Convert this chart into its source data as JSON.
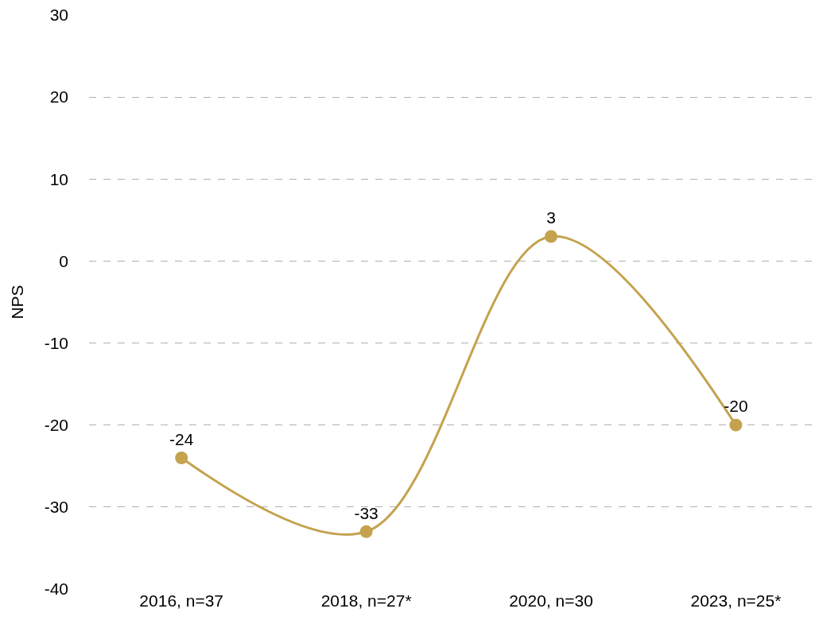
{
  "chart_data": {
    "type": "line",
    "ylabel": "NPS",
    "categories": [
      "2016, n=37",
      "2018, n=27*",
      "2020, n=30",
      "2023, n=25*"
    ],
    "series": [
      {
        "color": "#c4a24e",
        "values": [
          -24,
          -33,
          3,
          -20
        ]
      }
    ],
    "ylim": [
      -40,
      30
    ],
    "yticks": [
      -40,
      -30,
      -20,
      -10,
      0,
      10,
      20,
      30
    ],
    "grid": "y",
    "marker": "circle",
    "line_style": "solid",
    "data_labels": true
  }
}
